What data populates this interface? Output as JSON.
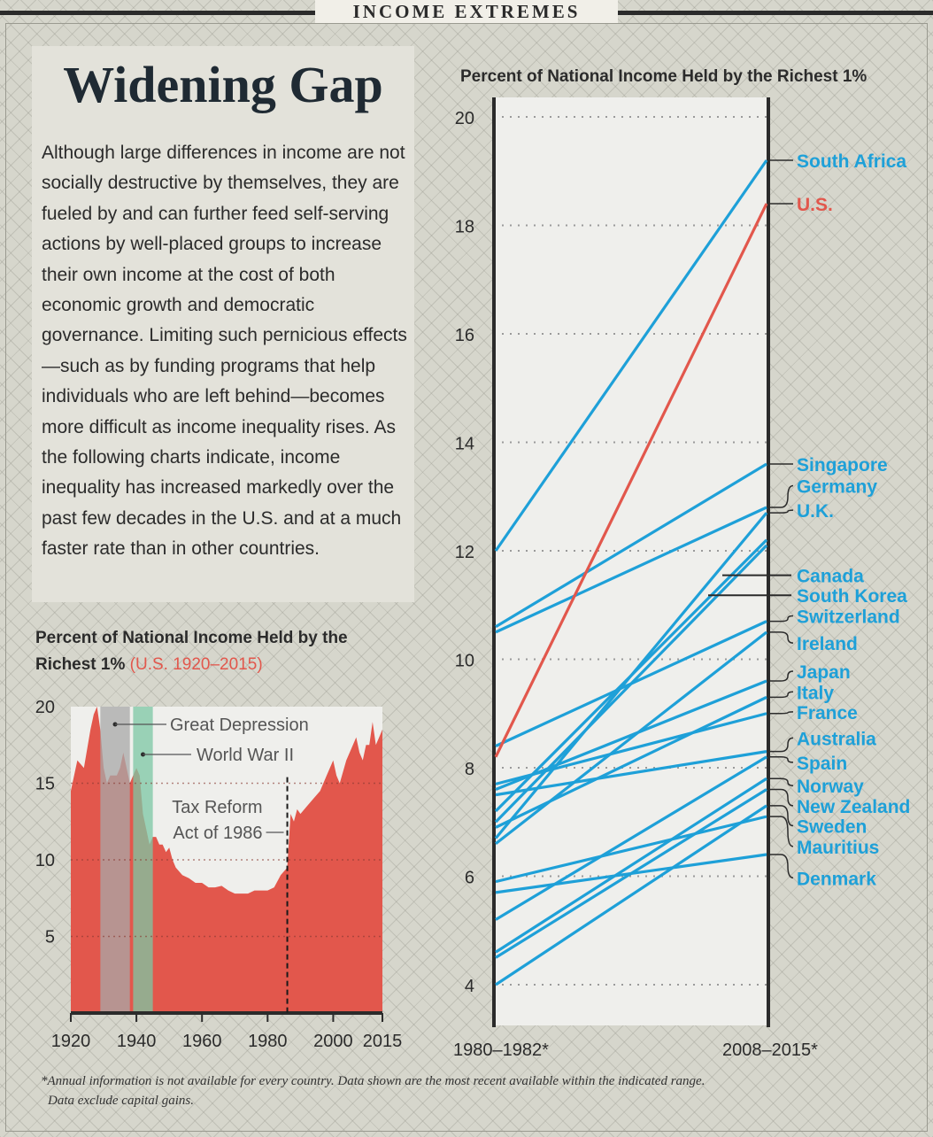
{
  "header": {
    "section_tag": "INCOME EXTREMES"
  },
  "headline": "Widening Gap",
  "body_text": "Although large differences in income are not socially destructive by themselves, they are fueled by and can further feed self-serving actions by well-placed groups to increase their own income at the cost of both economic growth and democratic governance. Limiting such pernicious effects—such as by funding programs that help individuals who are left behind—becomes more difficult as income inequality rises. As the following charts indicate, income inequality has increased markedly over the past few decades in the U.S. and at a much faster rate than in other countries.",
  "footnote_lines": [
    "*Annual information is not available for every country. Data shown are the most recent available within the indicated range.",
    "Data exclude capital gains."
  ],
  "colors": {
    "us_red": "#e2574c",
    "blue": "#1ea0d8",
    "depression": "#a8a8a8",
    "ww2": "#7cc7a4"
  },
  "chart_data": [
    {
      "type": "area",
      "title": "Percent of National Income Held by the Richest 1%",
      "title_highlight": "(U.S. 1920–2015)",
      "ylim": [
        0,
        20
      ],
      "xlim": [
        1920,
        2015
      ],
      "yticks": [
        5,
        10,
        15,
        20
      ],
      "xticks": [
        "1920",
        "1940",
        "1960",
        "1980",
        "2000",
        "2015"
      ],
      "x": [
        1920,
        1922,
        1924,
        1926,
        1927,
        1928,
        1929,
        1930,
        1931,
        1932,
        1933,
        1934,
        1935,
        1936,
        1937,
        1938,
        1939,
        1940,
        1941,
        1942,
        1943,
        1944,
        1945,
        1946,
        1947,
        1948,
        1949,
        1950,
        1951,
        1952,
        1954,
        1956,
        1958,
        1960,
        1962,
        1964,
        1966,
        1968,
        1970,
        1972,
        1974,
        1976,
        1978,
        1980,
        1982,
        1984,
        1986,
        1987,
        1988,
        1989,
        1990,
        1992,
        1994,
        1996,
        1998,
        2000,
        2001,
        2002,
        2004,
        2006,
        2007,
        2008,
        2009,
        2010,
        2011,
        2012,
        2013,
        2014,
        2015
      ],
      "values": [
        14.5,
        16.5,
        16.0,
        18.5,
        19.5,
        20.0,
        18.5,
        16.0,
        15.0,
        15.5,
        15.5,
        15.5,
        16.0,
        17.0,
        16.0,
        15.0,
        15.5,
        16.0,
        15.5,
        13.0,
        12.0,
        11.0,
        11.5,
        11.5,
        11.0,
        11.0,
        10.5,
        10.8,
        10.0,
        9.5,
        9.0,
        8.8,
        8.5,
        8.5,
        8.2,
        8.2,
        8.3,
        8.0,
        7.8,
        7.8,
        7.8,
        8.0,
        8.0,
        8.0,
        8.2,
        9.0,
        9.5,
        13.0,
        12.5,
        13.3,
        13.0,
        13.5,
        14.0,
        14.5,
        15.5,
        16.5,
        15.5,
        15.0,
        16.5,
        17.5,
        18.0,
        17.0,
        16.5,
        17.5,
        17.5,
        19.0,
        17.5,
        18.0,
        18.5
      ],
      "shaded_periods": [
        {
          "label": "Great Depression",
          "start": 1929,
          "end": 1938
        },
        {
          "label": "World War II",
          "start": 1939,
          "end": 1945
        }
      ],
      "annotation": {
        "label_line1": "Tax Reform",
        "label_line2": "Act of 1986",
        "year": 1986
      }
    },
    {
      "type": "line",
      "title": "Percent of National Income Held by the Richest 1%",
      "ylim": [
        4,
        20
      ],
      "yticks": [
        4,
        6,
        8,
        10,
        12,
        14,
        16,
        18,
        20
      ],
      "categories": [
        "1980–1982*",
        "2008–2015*"
      ],
      "series": [
        {
          "name": "South Africa",
          "values": [
            12.0,
            19.2
          ],
          "color": "#1ea0d8"
        },
        {
          "name": "U.S.",
          "values": [
            8.2,
            18.4
          ],
          "color": "#e2574c"
        },
        {
          "name": "Singapore",
          "values": [
            10.6,
            13.6
          ],
          "color": "#1ea0d8"
        },
        {
          "name": "Germany",
          "values": [
            10.5,
            12.8
          ],
          "color": "#1ea0d8"
        },
        {
          "name": "U.K.",
          "values": [
            6.7,
            12.7
          ],
          "color": "#1ea0d8"
        },
        {
          "name": "Canada",
          "values": [
            7.2,
            12.2
          ],
          "color": "#1ea0d8"
        },
        {
          "name": "South Korea",
          "values": [
            7.0,
            12.1
          ],
          "color": "#1ea0d8"
        },
        {
          "name": "Switzerland",
          "values": [
            8.4,
            10.7
          ],
          "color": "#1ea0d8"
        },
        {
          "name": "Ireland",
          "values": [
            6.6,
            10.5
          ],
          "color": "#1ea0d8"
        },
        {
          "name": "Japan",
          "values": [
            7.6,
            9.6
          ],
          "color": "#1ea0d8"
        },
        {
          "name": "Italy",
          "values": [
            6.9,
            9.3
          ],
          "color": "#1ea0d8"
        },
        {
          "name": "France",
          "values": [
            7.7,
            9.0
          ],
          "color": "#1ea0d8"
        },
        {
          "name": "Australia",
          "values": [
            7.5,
            8.3
          ],
          "color": "#1ea0d8"
        },
        {
          "name": "Spain",
          "values": [
            5.2,
            8.2
          ],
          "color": "#1ea0d8"
        },
        {
          "name": "Norway",
          "values": [
            4.6,
            7.8
          ],
          "color": "#1ea0d8"
        },
        {
          "name": "New Zealand",
          "values": [
            4.5,
            7.6
          ],
          "color": "#1ea0d8"
        },
        {
          "name": "Sweden",
          "values": [
            4.0,
            7.3
          ],
          "color": "#1ea0d8"
        },
        {
          "name": "Mauritius",
          "values": [
            5.9,
            7.1
          ],
          "color": "#1ea0d8"
        },
        {
          "name": "Denmark",
          "values": [
            5.7,
            6.4
          ],
          "color": "#1ea0d8"
        }
      ],
      "label_values": {
        "South Africa": 19.2,
        "U.S.": 18.4,
        "Singapore": 13.6,
        "Germany": 13.2,
        "U.K.": 12.75,
        "Canada": 11.55,
        "South Korea": 11.18,
        "Switzerland": 10.8,
        "Ireland": 10.3,
        "Japan": 9.78,
        "Italy": 9.4,
        "France": 9.03,
        "Australia": 8.55,
        "Spain": 8.1,
        "Norway": 7.67,
        "New Zealand": 7.3,
        "Sweden": 6.93,
        "Mauritius": 6.55,
        "Denmark": 5.97
      }
    }
  ]
}
